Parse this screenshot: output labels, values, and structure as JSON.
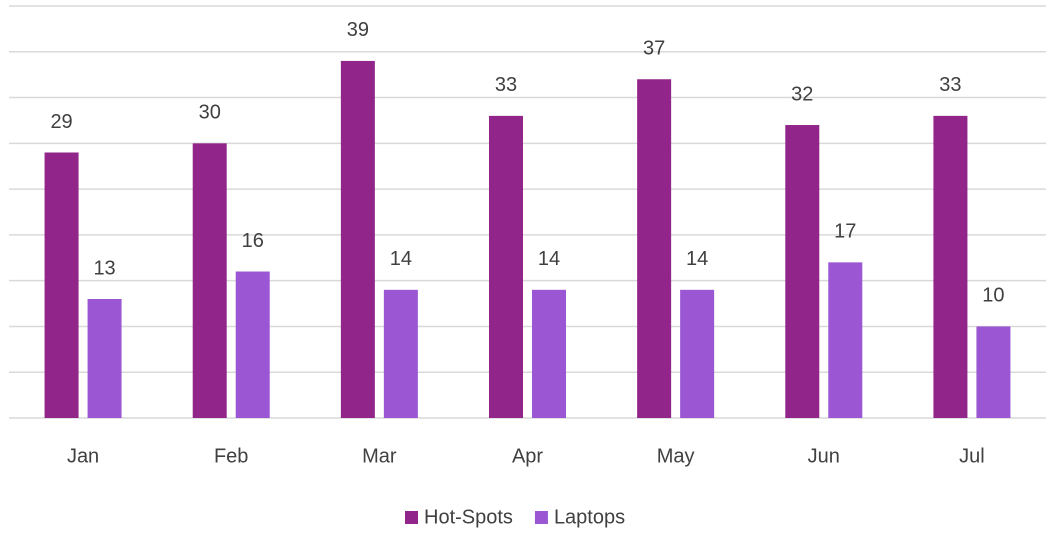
{
  "chart_data": {
    "type": "bar",
    "categories": [
      "Jan",
      "Feb",
      "Mar",
      "Apr",
      "May",
      "Jun",
      "Jul"
    ],
    "series": [
      {
        "name": "Hot-Spots",
        "color": "#912589",
        "values": [
          29,
          30,
          39,
          33,
          37,
          32,
          33
        ]
      },
      {
        "name": "Laptops",
        "color": "#9b57d3",
        "values": [
          13,
          16,
          14,
          14,
          14,
          17,
          10
        ]
      }
    ],
    "ylim": [
      0,
      45
    ],
    "yticks": [
      0,
      5,
      10,
      15,
      20,
      25,
      30,
      35,
      40,
      45
    ],
    "grid": true,
    "legend": "bottom"
  }
}
